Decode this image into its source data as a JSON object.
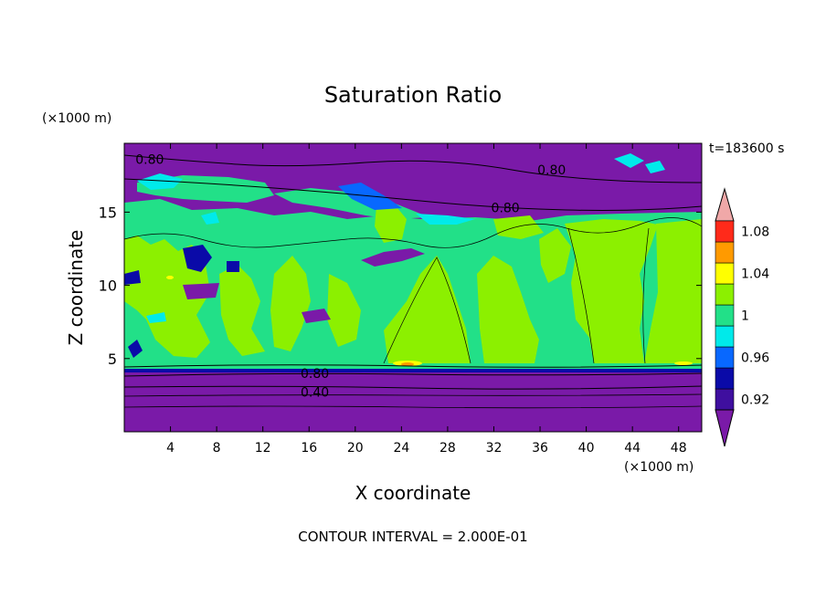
{
  "chart_data": {
    "type": "heatmap",
    "title": "Saturation Ratio",
    "xlabel": "X coordinate",
    "ylabel": "Z coordinate",
    "x_unit": "(×1000 m)",
    "y_unit": "(×1000 m)",
    "time_label": "t=183600 s",
    "footer": "CONTOUR INTERVAL = 2.000E-01",
    "xlim": [
      0,
      50
    ],
    "ylim": [
      0,
      19.7
    ],
    "x_ticks": [
      4,
      8,
      12,
      16,
      20,
      24,
      28,
      32,
      36,
      40,
      44,
      48
    ],
    "y_ticks": [
      5,
      10,
      15
    ],
    "grid": false,
    "colorbar": {
      "levels": [
        {
          "lower": 0.92,
          "color": "#3f0f9f"
        },
        {
          "lower": 0.94,
          "color": "#0a0aa8"
        },
        {
          "lower": 0.96,
          "color": "#0868ff"
        },
        {
          "lower": 0.98,
          "color": "#00eaea"
        },
        {
          "lower": 1.0,
          "color": "#22e088"
        },
        {
          "lower": 1.02,
          "color": "#8cf000"
        },
        {
          "lower": 1.04,
          "color": "#ffff00"
        },
        {
          "lower": 1.06,
          "color": "#ff9a00"
        },
        {
          "lower": 1.08,
          "color": "#ff2a1a"
        }
      ],
      "below_color": "#7a1aa8",
      "above_color": "#f0a8a8",
      "tick_labels": [
        "0.92",
        "0.96",
        "1",
        "1.04",
        "1.08"
      ],
      "tick_values": [
        0.92,
        0.96,
        1.0,
        1.04,
        1.08
      ]
    },
    "contour_labels": [
      {
        "text": "0.80",
        "x": 2.2,
        "z": 18.6
      },
      {
        "text": "0.80",
        "x": 37.0,
        "z": 17.9
      },
      {
        "text": "0.80",
        "x": 33.0,
        "z": 15.3
      },
      {
        "text": "0.80",
        "x": 16.5,
        "z": 4.0
      },
      {
        "text": "0.40",
        "x": 16.5,
        "z": 2.7
      }
    ]
  }
}
